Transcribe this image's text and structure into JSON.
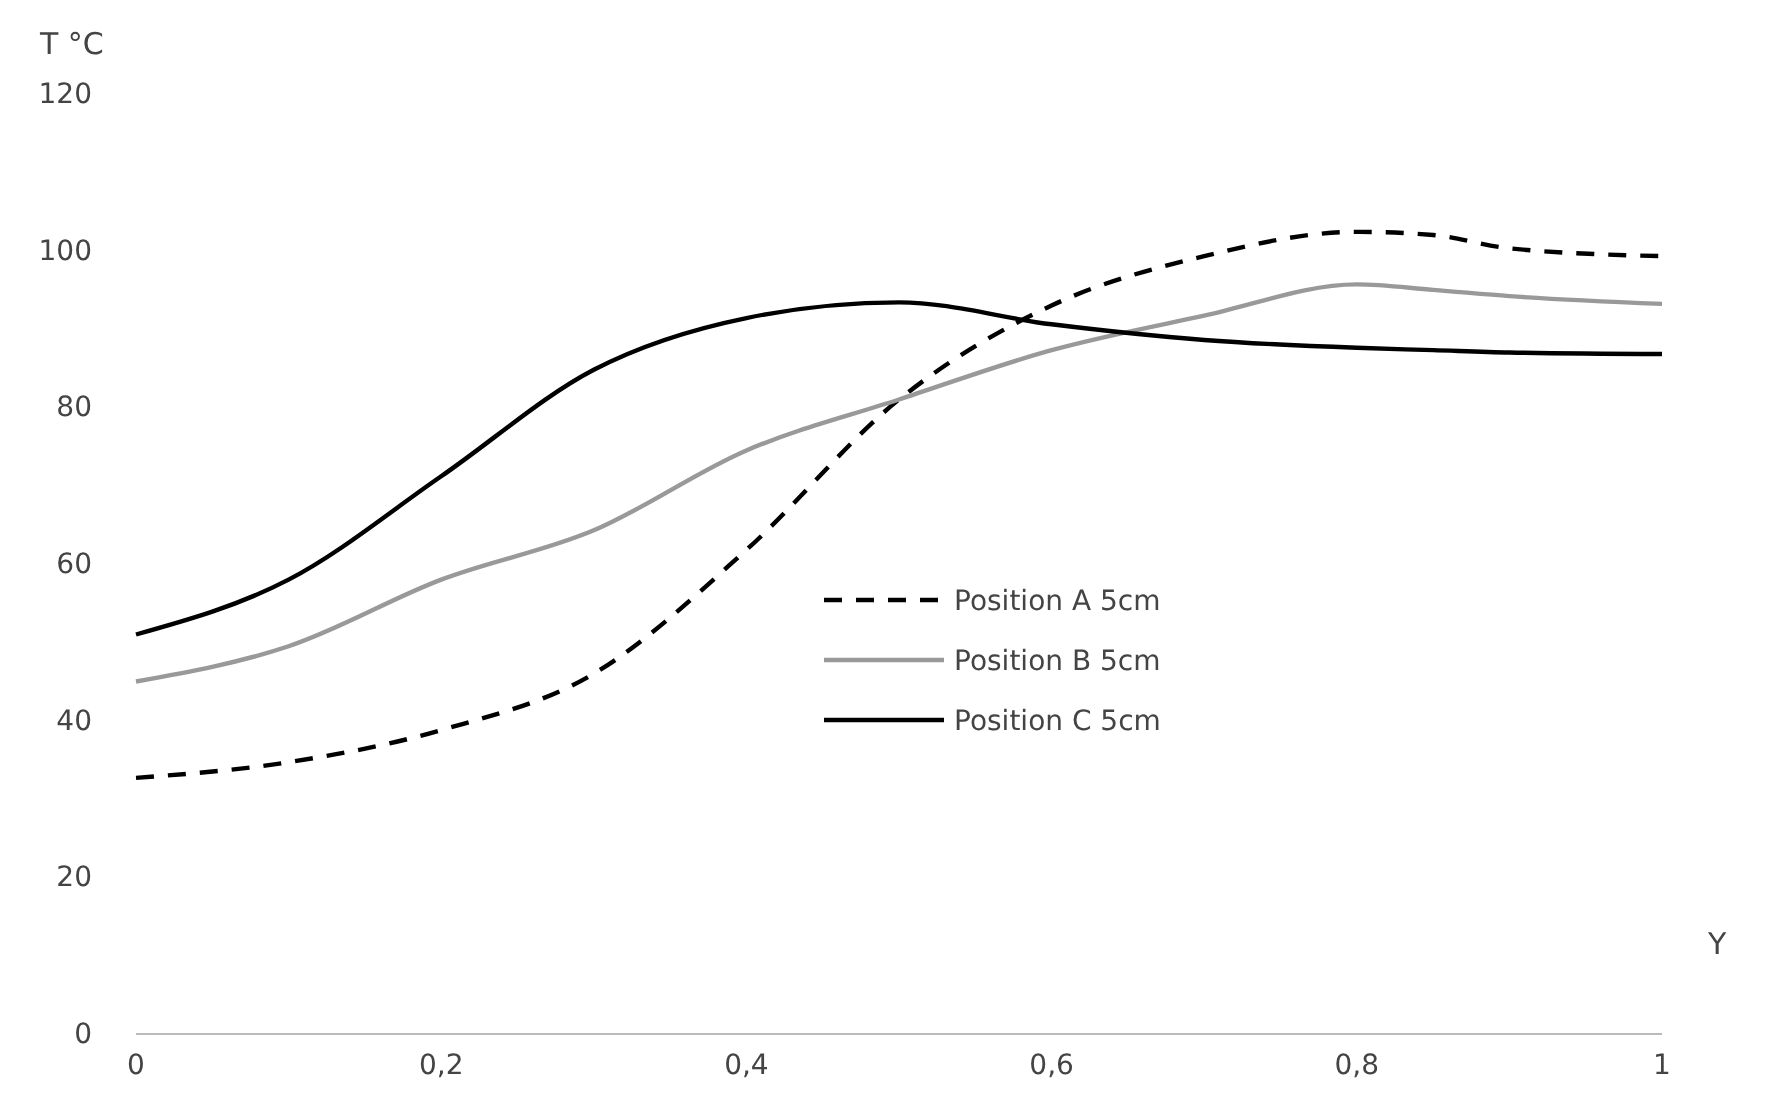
{
  "chart_data": {
    "type": "line",
    "xlabel": "Y",
    "ylabel": "T °C",
    "x": [
      0,
      0.1,
      0.2,
      0.3,
      0.4,
      0.5,
      0.6,
      0.7,
      0.8,
      0.85,
      0.9,
      1
    ],
    "series": [
      {
        "name": "Position A 5cm",
        "color": "#000000",
        "line_style": "dashed",
        "values": [
          32.7,
          34.7,
          38.8,
          46,
          61.8,
          81,
          93,
          99.3,
          102.4,
          102,
          100.3,
          99.3
        ]
      },
      {
        "name": "Position B 5cm",
        "color": "#999999",
        "line_style": "solid",
        "values": [
          45,
          49.5,
          58,
          64.3,
          74.5,
          81,
          87.3,
          91.7,
          95.7,
          95,
          94.2,
          93.2
        ]
      },
      {
        "name": "Position C 5cm",
        "color": "#000000",
        "line_style": "solid",
        "values": [
          51,
          58,
          71.2,
          84.8,
          91.4,
          93.4,
          90.6,
          88.6,
          87.6,
          87.3,
          87,
          86.8
        ]
      }
    ],
    "xlim": [
      0,
      1
    ],
    "xticks": [
      0,
      {
        "value": 0.2,
        "label": "0,2"
      },
      {
        "value": 0.4,
        "label": "0,4"
      },
      {
        "value": 0.6,
        "label": "0,6"
      },
      {
        "value": 0.8,
        "label": "0,8"
      },
      1
    ],
    "ylim": [
      0,
      120
    ],
    "yticks": [
      0,
      20,
      40,
      60,
      80,
      100,
      120
    ],
    "grid": false,
    "legend": "center",
    "marker": "none"
  }
}
